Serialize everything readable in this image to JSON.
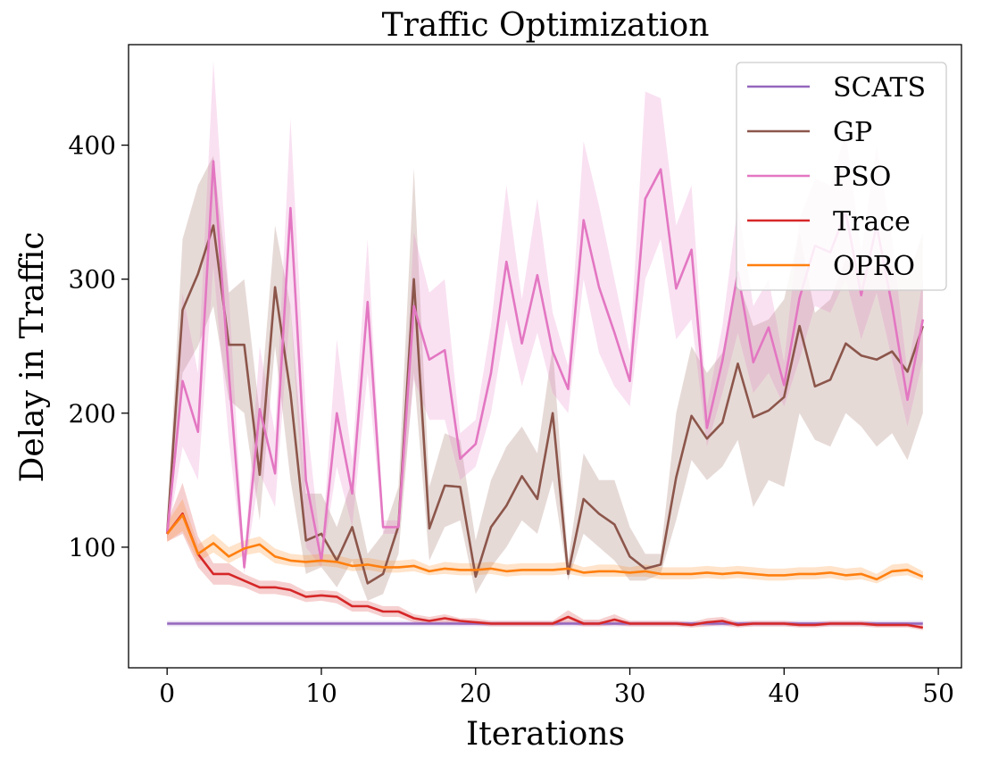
{
  "chart_data": {
    "type": "line",
    "title": "Traffic Optimization",
    "xlabel": "Iterations",
    "ylabel": "Delay in Traffic",
    "xlim": [
      -2.5,
      51.5
    ],
    "ylim": [
      10,
      475
    ],
    "xticks": [
      0,
      10,
      20,
      30,
      40,
      50
    ],
    "yticks": [
      100,
      200,
      300,
      400
    ],
    "grid": false,
    "legend_position": "top-right",
    "x": [
      0,
      1,
      2,
      3,
      4,
      5,
      6,
      7,
      8,
      9,
      10,
      11,
      12,
      13,
      14,
      15,
      16,
      17,
      18,
      19,
      20,
      21,
      22,
      23,
      24,
      25,
      26,
      27,
      28,
      29,
      30,
      31,
      32,
      33,
      34,
      35,
      36,
      37,
      38,
      39,
      40,
      41,
      42,
      43,
      44,
      45,
      46,
      47,
      48,
      49
    ],
    "series": [
      {
        "name": "SCATS",
        "color": "#9467bd",
        "values": [
          43,
          43,
          43,
          43,
          43,
          43,
          43,
          43,
          43,
          43,
          43,
          43,
          43,
          43,
          43,
          43,
          43,
          43,
          43,
          43,
          43,
          43,
          43,
          43,
          43,
          43,
          43,
          43,
          43,
          43,
          43,
          43,
          43,
          43,
          43,
          43,
          43,
          43,
          43,
          43,
          43,
          43,
          43,
          43,
          43,
          43,
          43,
          43,
          43,
          43
        ],
        "lower": [
          41,
          41,
          41,
          41,
          41,
          41,
          41,
          41,
          41,
          41,
          41,
          41,
          41,
          41,
          41,
          41,
          41,
          41,
          41,
          41,
          41,
          41,
          41,
          41,
          41,
          41,
          41,
          41,
          41,
          41,
          41,
          41,
          41,
          41,
          41,
          41,
          41,
          41,
          41,
          41,
          41,
          41,
          41,
          41,
          41,
          41,
          41,
          41,
          41,
          41
        ],
        "upper": [
          45,
          45,
          45,
          45,
          45,
          45,
          45,
          45,
          45,
          45,
          45,
          45,
          45,
          45,
          45,
          45,
          45,
          45,
          45,
          45,
          45,
          45,
          45,
          45,
          45,
          45,
          45,
          45,
          45,
          45,
          45,
          45,
          45,
          45,
          45,
          45,
          45,
          45,
          45,
          45,
          45,
          45,
          45,
          45,
          45,
          45,
          45,
          45,
          45,
          45
        ]
      },
      {
        "name": "GP",
        "color": "#8c564b",
        "values": [
          110,
          277,
          304,
          340,
          251,
          251,
          154,
          294,
          215,
          105,
          110,
          90,
          115,
          73,
          80,
          116,
          300,
          114,
          146,
          145,
          78,
          115,
          131,
          153,
          136,
          200,
          80,
          136,
          125,
          117,
          93,
          84,
          87,
          152,
          198,
          181,
          193,
          237,
          197,
          202,
          212,
          265,
          220,
          225,
          252,
          243,
          240,
          246,
          231,
          265
        ],
        "lower": [
          105,
          230,
          250,
          280,
          210,
          200,
          120,
          250,
          150,
          80,
          85,
          70,
          90,
          60,
          65,
          95,
          230,
          90,
          115,
          120,
          65,
          85,
          100,
          120,
          110,
          150,
          75,
          110,
          100,
          90,
          75,
          75,
          80,
          120,
          165,
          150,
          160,
          180,
          130,
          150,
          145,
          200,
          180,
          175,
          200,
          190,
          175,
          185,
          165,
          200
        ],
        "upper": [
          118,
          330,
          370,
          392,
          290,
          300,
          200,
          340,
          280,
          140,
          140,
          115,
          150,
          95,
          110,
          145,
          383,
          145,
          185,
          180,
          105,
          150,
          175,
          190,
          170,
          250,
          90,
          170,
          150,
          150,
          115,
          95,
          95,
          200,
          250,
          230,
          245,
          300,
          265,
          270,
          285,
          335,
          275,
          285,
          315,
          305,
          310,
          310,
          300,
          335
        ]
      },
      {
        "name": "PSO",
        "color": "#e377c2",
        "values": [
          110,
          224,
          186,
          388,
          230,
          85,
          203,
          155,
          353,
          150,
          90,
          200,
          140,
          283,
          115,
          115,
          280,
          240,
          247,
          166,
          177,
          230,
          313,
          252,
          303,
          246,
          218,
          344,
          294,
          260,
          224,
          360,
          382,
          293,
          322,
          189,
          239,
          305,
          238,
          264,
          221,
          286,
          325,
          320,
          350,
          288,
          340,
          280,
          210,
          270
        ],
        "lower": [
          105,
          175,
          150,
          310,
          180,
          80,
          155,
          130,
          280,
          100,
          85,
          160,
          115,
          230,
          110,
          110,
          225,
          195,
          195,
          150,
          160,
          200,
          270,
          220,
          260,
          215,
          200,
          300,
          245,
          220,
          205,
          300,
          330,
          255,
          270,
          175,
          215,
          260,
          215,
          230,
          205,
          240,
          280,
          275,
          300,
          255,
          290,
          240,
          190,
          240
        ],
        "upper": [
          118,
          290,
          230,
          463,
          290,
          90,
          250,
          185,
          420,
          200,
          95,
          255,
          165,
          330,
          120,
          120,
          335,
          290,
          300,
          185,
          195,
          265,
          370,
          285,
          360,
          275,
          235,
          403,
          355,
          300,
          245,
          440,
          435,
          340,
          370,
          205,
          265,
          355,
          280,
          300,
          238,
          345,
          375,
          370,
          410,
          320,
          400,
          330,
          230,
          300
        ]
      },
      {
        "name": "Trace",
        "color": "#d62728",
        "values": [
          110,
          125,
          95,
          80,
          80,
          75,
          70,
          70,
          68,
          63,
          64,
          63,
          56,
          56,
          52,
          52,
          47,
          45,
          47,
          45,
          44,
          43,
          43,
          43,
          43,
          43,
          48,
          43,
          43,
          46,
          43,
          43,
          43,
          43,
          42,
          44,
          45,
          42,
          43,
          43,
          43,
          42,
          42,
          43,
          43,
          43,
          42,
          42,
          42,
          40
        ],
        "lower": [
          104,
          110,
          85,
          72,
          72,
          70,
          65,
          65,
          63,
          59,
          60,
          58,
          52,
          52,
          48,
          48,
          44,
          43,
          44,
          42,
          42,
          41,
          41,
          41,
          41,
          41,
          43,
          41,
          41,
          42,
          41,
          41,
          41,
          41,
          40,
          41,
          42,
          40,
          41,
          41,
          41,
          40,
          40,
          41,
          41,
          41,
          40,
          40,
          40,
          38
        ],
        "upper": [
          118,
          148,
          108,
          88,
          88,
          80,
          75,
          75,
          73,
          67,
          68,
          67,
          60,
          60,
          56,
          56,
          50,
          48,
          50,
          47,
          47,
          45,
          45,
          45,
          45,
          45,
          53,
          46,
          46,
          50,
          45,
          45,
          45,
          45,
          44,
          47,
          48,
          44,
          45,
          45,
          45,
          44,
          44,
          45,
          45,
          45,
          44,
          44,
          44,
          42
        ]
      },
      {
        "name": "OPRO",
        "color": "#ff7f0e",
        "values": [
          110,
          124,
          95,
          103,
          93,
          99,
          102,
          93,
          90,
          89,
          90,
          89,
          86,
          87,
          85,
          85,
          86,
          82,
          84,
          83,
          83,
          84,
          82,
          83,
          83,
          83,
          84,
          81,
          82,
          82,
          81,
          82,
          80,
          80,
          80,
          81,
          80,
          81,
          80,
          79,
          79,
          80,
          80,
          81,
          79,
          80,
          76,
          82,
          83,
          78
        ],
        "lower": [
          104,
          112,
          89,
          96,
          88,
          94,
          96,
          88,
          86,
          85,
          86,
          85,
          82,
          83,
          81,
          81,
          82,
          79,
          80,
          79,
          79,
          80,
          78,
          79,
          79,
          79,
          80,
          78,
          78,
          78,
          78,
          78,
          76,
          76,
          76,
          77,
          76,
          77,
          76,
          75,
          75,
          76,
          76,
          77,
          75,
          76,
          73,
          78,
          79,
          75
        ],
        "upper": [
          118,
          136,
          102,
          110,
          100,
          105,
          108,
          99,
          95,
          94,
          95,
          94,
          91,
          92,
          90,
          90,
          91,
          86,
          89,
          88,
          88,
          89,
          87,
          88,
          88,
          88,
          89,
          85,
          87,
          87,
          85,
          87,
          85,
          85,
          85,
          86,
          85,
          86,
          85,
          84,
          84,
          85,
          85,
          86,
          84,
          85,
          80,
          87,
          88,
          82
        ]
      }
    ]
  }
}
